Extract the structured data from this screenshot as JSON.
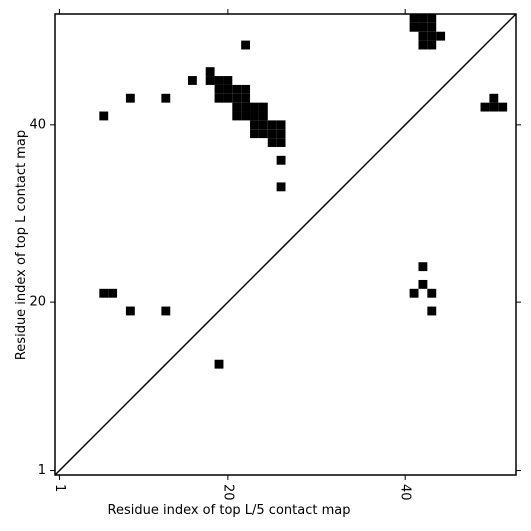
{
  "chart_data": {
    "type": "scatter",
    "x_label": "Residue index of top L/5 contact map",
    "y_label": "Residue index of top L contact map",
    "xlim": [
      0.5,
      52.5
    ],
    "ylim": [
      0.5,
      52.5
    ],
    "xticks": [
      1,
      20,
      40
    ],
    "yticks": [
      1,
      20,
      40
    ],
    "diagonal": true,
    "series": [
      {
        "color": "#000000",
        "x": [
          22,
          9,
          13,
          6,
          16,
          18,
          18,
          19,
          19,
          19,
          20,
          20,
          20,
          21,
          21,
          21,
          21,
          22,
          22,
          22,
          22,
          23,
          23,
          23,
          23,
          24,
          24,
          24,
          24,
          25,
          25,
          25,
          26,
          26,
          26,
          26,
          26,
          41,
          42,
          43,
          41,
          42,
          43,
          42,
          43,
          42,
          43,
          44,
          50,
          49,
          50,
          51,
          6,
          7,
          9,
          13,
          19
        ],
        "values": [
          49,
          43,
          43,
          41,
          45,
          45,
          46,
          43,
          44,
          45,
          43,
          44,
          45,
          41,
          42,
          43,
          44,
          41,
          42,
          43,
          44,
          39,
          40,
          41,
          42,
          39,
          40,
          41,
          42,
          38,
          39,
          40,
          38,
          39,
          40,
          36,
          33,
          52,
          52,
          52,
          51,
          51,
          51,
          50,
          50,
          49,
          49,
          50,
          43,
          42,
          42,
          42,
          21,
          21,
          19,
          19,
          13
        ]
      },
      {
        "color": "#000000",
        "x": [
          42,
          42,
          41,
          43,
          43
        ],
        "values": [
          24,
          22,
          21,
          21,
          19
        ]
      }
    ]
  }
}
